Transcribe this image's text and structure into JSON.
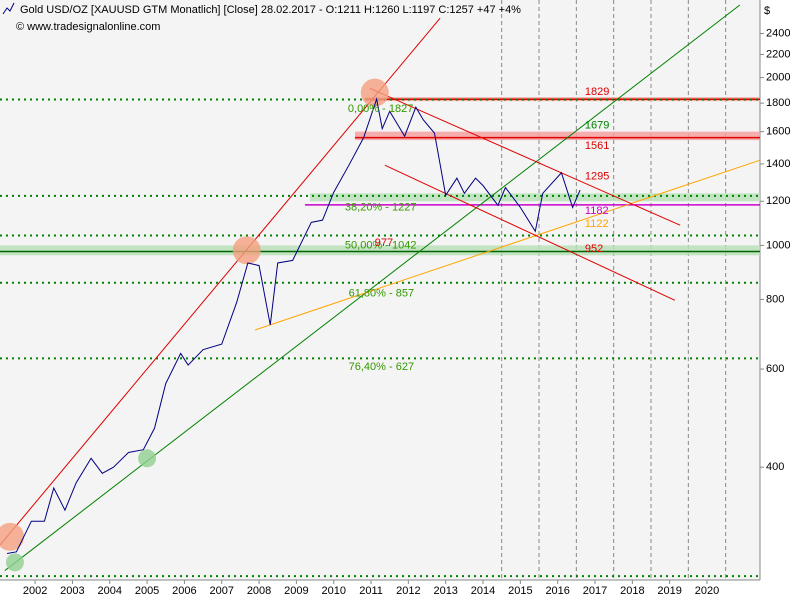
{
  "chart_data": {
    "type": "line",
    "title": "Gold USD/OZ [XAUUSD GTM  Monatlich] [Close] 28.02.2017 - O:1211 H:1260 L:1197 C:1257 +47 +4%",
    "subtitle": "© www.tradesignalonline.com",
    "y_label": "$",
    "log_y": true,
    "xlim": [
      2001.56,
      2021.92
    ],
    "ylim": [
      251,
      2756
    ],
    "xticks": [
      {
        "value": 2002.5,
        "label": "2002"
      },
      {
        "value": 2003.5,
        "label": "2003"
      },
      {
        "value": 2004.5,
        "label": "2004"
      },
      {
        "value": 2005.5,
        "label": "2005"
      },
      {
        "value": 2006.5,
        "label": "2006"
      },
      {
        "value": 2007.5,
        "label": "2007"
      },
      {
        "value": 2008.5,
        "label": "2008"
      },
      {
        "value": 2009.5,
        "label": "2009"
      },
      {
        "value": 2010.5,
        "label": "2010"
      },
      {
        "value": 2011.5,
        "label": "2011"
      },
      {
        "value": 2012.5,
        "label": "2012"
      },
      {
        "value": 2013.5,
        "label": "2013"
      },
      {
        "value": 2014.5,
        "label": "2014"
      },
      {
        "value": 2015.5,
        "label": "2015"
      },
      {
        "value": 2016.5,
        "label": "2016"
      },
      {
        "value": 2017.5,
        "label": "2017"
      },
      {
        "value": 2018.5,
        "label": "2018"
      },
      {
        "value": 2019.5,
        "label": "2019"
      },
      {
        "value": 2020.5,
        "label": "2020"
      }
    ],
    "yticks": [
      400,
      600,
      800,
      1000,
      1200,
      1400,
      1600,
      1800,
      2000,
      2200,
      2400
    ],
    "vlines": [
      2015,
      2016,
      2017,
      2018,
      2019,
      2020,
      2021
    ],
    "series": [
      {
        "name": "Gold",
        "color": "#000080",
        "x": [
          2001.75,
          2002.0,
          2002.4,
          2002.75,
          2003.0,
          2003.3,
          2003.6,
          2004.0,
          2004.3,
          2004.6,
          2005.0,
          2005.4,
          2005.7,
          2006.0,
          2006.4,
          2006.6,
          2007.0,
          2007.5,
          2007.9,
          2008.2,
          2008.5,
          2008.8,
          2009.0,
          2009.4,
          2009.9,
          2010.2,
          2010.5,
          2010.9,
          2011.3,
          2011.65,
          2011.8,
          2012.0,
          2012.4,
          2012.7,
          2012.9,
          2013.2,
          2013.5,
          2013.8,
          2014.0,
          2014.3,
          2014.5,
          2014.9,
          2015.1,
          2015.5,
          2015.9,
          2016.1,
          2016.6,
          2016.9,
          2017.1
        ],
        "values": [
          280,
          282,
          320,
          320,
          367,
          335,
          375,
          415,
          390,
          400,
          425,
          430,
          470,
          565,
          640,
          610,
          650,
          665,
          790,
          930,
          920,
          720,
          930,
          940,
          1100,
          1110,
          1245,
          1390,
          1560,
          1830,
          1620,
          1740,
          1570,
          1770,
          1680,
          1590,
          1230,
          1320,
          1240,
          1320,
          1280,
          1180,
          1270,
          1170,
          1060,
          1240,
          1350,
          1170,
          1257
        ]
      }
    ],
    "bands": [
      {
        "low": 1815,
        "high": 1845,
        "from": 2011.33,
        "color": "#f4a0a0"
      },
      {
        "low": 1545,
        "high": 1600,
        "from": 2011.07,
        "color": "#f4a0a0"
      },
      {
        "low": 1200,
        "high": 1240,
        "from": 2009.86,
        "color": "#b8e0b8"
      },
      {
        "low": 960,
        "high": 1000,
        "from": 2001.56,
        "color": "#b8e0b8"
      }
    ],
    "hlines": [
      {
        "value": 1829,
        "from": 2011.33,
        "color": "#e00000",
        "dotted": false
      },
      {
        "value": 1561,
        "from": 2011.07,
        "color": "#e00000",
        "dotted": false
      },
      {
        "value": 1182,
        "from": 2009.73,
        "color": "#cc00cc",
        "dotted": false
      },
      {
        "value": 975,
        "from": 2001.56,
        "color": "#006400",
        "dotted": false
      },
      {
        "value": 1827,
        "from": 2001.56,
        "color": "#008000",
        "dotted": true
      },
      {
        "value": 1227,
        "from": 2001.56,
        "color": "#008000",
        "dotted": true
      },
      {
        "value": 1042,
        "from": 2001.56,
        "color": "#008000",
        "dotted": true
      },
      {
        "value": 857,
        "from": 2001.56,
        "color": "#008000",
        "dotted": true
      },
      {
        "value": 627,
        "from": 2001.56,
        "color": "#008000",
        "dotted": true
      },
      {
        "value": 255,
        "from": 2001.56,
        "color": "#008000",
        "dotted": true
      }
    ],
    "lines": [
      {
        "color": "#e00000",
        "points": [
          [
            2001.56,
            290
          ],
          [
            2013.35,
            2557
          ]
        ]
      },
      {
        "color": "#008000",
        "points": [
          [
            2001.69,
            261
          ],
          [
            2021.38,
            2700
          ]
        ]
      },
      {
        "color": "#ffa500",
        "points": [
          [
            2008.39,
            705
          ],
          [
            2021.92,
            1422
          ]
        ]
      },
      {
        "color": "#e00000",
        "points": [
          [
            2011.47,
            1913
          ],
          [
            2019.78,
            1087
          ]
        ]
      },
      {
        "color": "#e00000",
        "points": [
          [
            2011.87,
            1393
          ],
          [
            2019.64,
            797
          ]
        ]
      }
    ],
    "markers": [
      {
        "x": 2011.6,
        "y": 1880,
        "color": "#f4a080"
      },
      {
        "x": 2008.17,
        "y": 980,
        "color": "#f4a080"
      },
      {
        "x": 2001.83,
        "y": 300,
        "color": "#f4a080"
      },
      {
        "x": 2005.5,
        "y": 415,
        "color": "#90d090"
      },
      {
        "x": 2001.96,
        "y": 270,
        "color": "#90d090"
      }
    ],
    "annotations": [
      {
        "text": "1829",
        "x": 2017.23,
        "y": 1884,
        "color": "#e00000"
      },
      {
        "text": "1679",
        "x": 2017.23,
        "y": 1640,
        "color": "#008000"
      },
      {
        "text": "1561",
        "x": 2017.23,
        "y": 1508,
        "color": "#e00000"
      },
      {
        "text": "1295",
        "x": 2017.23,
        "y": 1330,
        "color": "#e00000"
      },
      {
        "text": "1182",
        "x": 2017.23,
        "y": 1153,
        "color": "#cc00cc"
      },
      {
        "text": "1122",
        "x": 2017.23,
        "y": 1093,
        "color": "#ffa500"
      },
      {
        "text": "952",
        "x": 2017.23,
        "y": 985,
        "color": "#e00000"
      },
      {
        "text": "0,00% - 1827",
        "x": 2010.88,
        "y": 1755,
        "color": "#339900"
      },
      {
        "text": "38,20% - 1227",
        "x": 2010.8,
        "y": 1170,
        "color": "#339900"
      },
      {
        "text": "50,00% - 1042",
        "x": 2010.8,
        "y": 1000,
        "color": "#339900"
      },
      {
        "text": "977",
        "x": 2011.6,
        "y": 1010,
        "color": "#e00000"
      },
      {
        "text": "61,80% - 857",
        "x": 2010.9,
        "y": 820,
        "color": "#339900"
      },
      {
        "text": "76,40% - 627",
        "x": 2010.9,
        "y": 605,
        "color": "#339900"
      }
    ]
  }
}
